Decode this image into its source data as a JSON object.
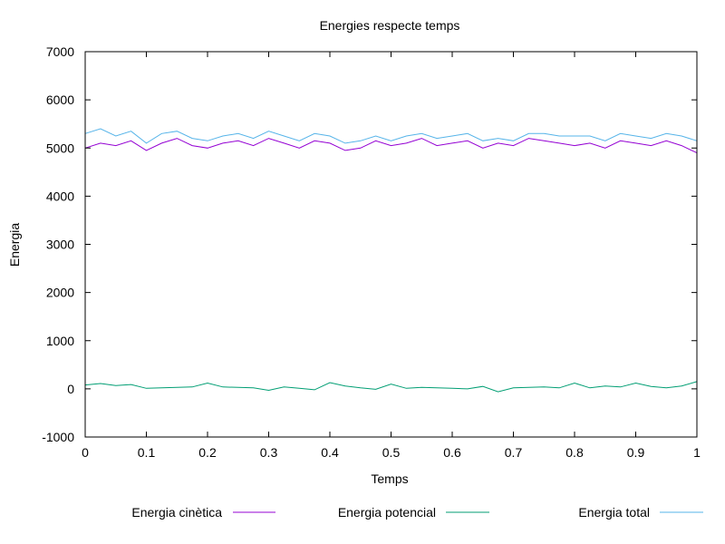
{
  "chart_data": {
    "type": "line",
    "title": "Energies respecte temps",
    "xlabel": "Temps",
    "ylabel": "Energia",
    "xlim": [
      0,
      1
    ],
    "ylim": [
      -1000,
      7000
    ],
    "xticks": [
      0,
      0.1,
      0.2,
      0.3,
      0.4,
      0.5,
      0.6,
      0.7,
      0.8,
      0.9,
      1
    ],
    "xtick_labels": [
      "0",
      "0.1",
      "0.2",
      "0.3",
      "0.4",
      "0.5",
      "0.6",
      "0.7",
      "0.8",
      "0.9",
      "1"
    ],
    "yticks": [
      -1000,
      0,
      1000,
      2000,
      3000,
      4000,
      5000,
      6000,
      7000
    ],
    "ytick_labels": [
      "-1000",
      "0",
      "1000",
      "2000",
      "3000",
      "4000",
      "5000",
      "6000",
      "7000"
    ],
    "grid": false,
    "legend_position": "bottom",
    "series": [
      {
        "name": "Energia cinètica",
        "color": "#9400d3",
        "x": [
          0,
          0.025,
          0.05,
          0.075,
          0.1,
          0.125,
          0.15,
          0.175,
          0.2,
          0.225,
          0.25,
          0.275,
          0.3,
          0.325,
          0.35,
          0.375,
          0.4,
          0.425,
          0.45,
          0.475,
          0.5,
          0.525,
          0.55,
          0.575,
          0.6,
          0.625,
          0.65,
          0.675,
          0.7,
          0.725,
          0.75,
          0.775,
          0.8,
          0.825,
          0.85,
          0.875,
          0.9,
          0.925,
          0.95,
          0.975,
          1
        ],
        "y": [
          5000,
          5100,
          5050,
          5150,
          4950,
          5100,
          5200,
          5050,
          5000,
          5100,
          5150,
          5050,
          5200,
          5100,
          5000,
          5150,
          5100,
          4950,
          5000,
          5150,
          5050,
          5100,
          5200,
          5050,
          5100,
          5150,
          5000,
          5100,
          5050,
          5200,
          5150,
          5100,
          5050,
          5100,
          5000,
          5150,
          5100,
          5050,
          5150,
          5050,
          4900
        ]
      },
      {
        "name": "Energia potencial",
        "color": "#009e73",
        "x": [
          0,
          0.025,
          0.05,
          0.075,
          0.1,
          0.125,
          0.15,
          0.175,
          0.2,
          0.225,
          0.25,
          0.275,
          0.3,
          0.325,
          0.35,
          0.375,
          0.4,
          0.425,
          0.45,
          0.475,
          0.5,
          0.525,
          0.55,
          0.575,
          0.6,
          0.625,
          0.65,
          0.675,
          0.7,
          0.725,
          0.75,
          0.775,
          0.8,
          0.825,
          0.85,
          0.875,
          0.9,
          0.925,
          0.95,
          0.975,
          1
        ],
        "y": [
          80,
          110,
          70,
          90,
          10,
          20,
          30,
          40,
          120,
          40,
          30,
          20,
          -30,
          40,
          10,
          -20,
          130,
          60,
          20,
          -10,
          100,
          10,
          30,
          20,
          10,
          0,
          50,
          -60,
          20,
          30,
          40,
          20,
          120,
          20,
          60,
          40,
          120,
          50,
          20,
          60,
          150
        ]
      },
      {
        "name": "Energia total",
        "color": "#56b4e9",
        "x": [
          0,
          0.025,
          0.05,
          0.075,
          0.1,
          0.125,
          0.15,
          0.175,
          0.2,
          0.225,
          0.25,
          0.275,
          0.3,
          0.325,
          0.35,
          0.375,
          0.4,
          0.425,
          0.45,
          0.475,
          0.5,
          0.525,
          0.55,
          0.575,
          0.6,
          0.625,
          0.65,
          0.675,
          0.7,
          0.725,
          0.75,
          0.775,
          0.8,
          0.825,
          0.85,
          0.875,
          0.9,
          0.925,
          0.95,
          0.975,
          1
        ],
        "y": [
          5300,
          5400,
          5250,
          5350,
          5100,
          5300,
          5350,
          5200,
          5150,
          5250,
          5300,
          5200,
          5350,
          5250,
          5150,
          5300,
          5250,
          5100,
          5150,
          5250,
          5150,
          5250,
          5300,
          5200,
          5250,
          5300,
          5150,
          5200,
          5150,
          5300,
          5300,
          5250,
          5250,
          5250,
          5150,
          5300,
          5250,
          5200,
          5300,
          5250,
          5150
        ]
      }
    ]
  }
}
